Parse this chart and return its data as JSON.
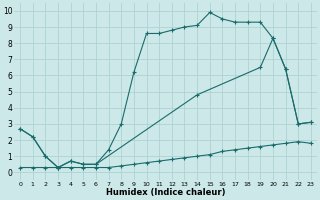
{
  "xlabel": "Humidex (Indice chaleur)",
  "xlim": [
    -0.5,
    23.5
  ],
  "ylim": [
    -0.5,
    10.5
  ],
  "xticks": [
    0,
    1,
    2,
    3,
    4,
    5,
    6,
    7,
    8,
    9,
    10,
    11,
    12,
    13,
    14,
    15,
    16,
    17,
    18,
    19,
    20,
    21,
    22,
    23
  ],
  "yticks": [
    0,
    1,
    2,
    3,
    4,
    5,
    6,
    7,
    8,
    9,
    10
  ],
  "background_color": "#cce8e8",
  "grid_color": "#aacece",
  "line_color": "#1a6b6b",
  "line1_x": [
    0,
    1,
    2,
    3,
    4,
    5,
    6,
    7,
    8,
    9,
    10,
    11,
    12,
    13,
    14,
    15,
    16,
    17,
    18,
    19,
    20,
    21,
    22,
    23
  ],
  "line1_y": [
    0.3,
    0.3,
    0.3,
    0.3,
    0.3,
    0.3,
    0.3,
    0.3,
    0.4,
    0.5,
    0.6,
    0.7,
    0.8,
    0.9,
    1.0,
    1.1,
    1.3,
    1.4,
    1.5,
    1.6,
    1.7,
    1.8,
    1.9,
    1.8
  ],
  "line2_x": [
    0,
    1,
    2,
    3,
    4,
    5,
    6,
    7,
    8,
    9,
    10,
    11,
    12,
    13,
    14,
    15,
    16,
    17,
    18,
    19,
    20,
    21,
    22,
    23
  ],
  "line2_y": [
    2.7,
    2.2,
    1.0,
    0.3,
    0.7,
    0.5,
    0.5,
    1.4,
    3.0,
    6.2,
    8.6,
    8.6,
    8.8,
    9.0,
    9.1,
    9.9,
    9.5,
    9.3,
    9.3,
    9.3,
    8.3,
    6.4,
    3.0,
    3.1
  ],
  "line3_x": [
    0,
    1,
    2,
    3,
    4,
    5,
    6,
    14,
    19,
    20,
    21,
    22,
    23
  ],
  "line3_y": [
    2.7,
    2.2,
    1.0,
    0.3,
    0.7,
    0.5,
    0.5,
    4.8,
    6.5,
    8.3,
    6.4,
    3.0,
    3.1
  ]
}
